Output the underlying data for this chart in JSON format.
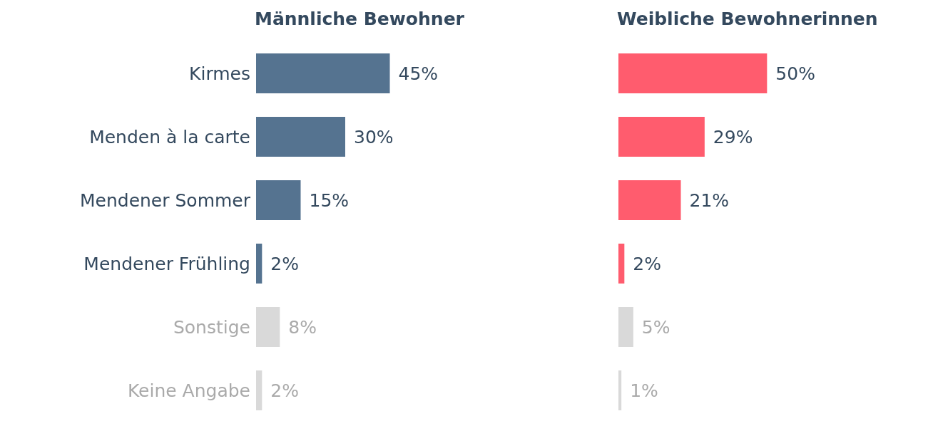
{
  "chart_data": [
    {
      "type": "bar",
      "orientation": "horizontal",
      "title": "Männliche Bewohner",
      "categories": [
        "Kirmes",
        "Menden à la carte",
        "Mendener Sommer",
        "Mendener Frühling",
        "Sonstige",
        "Keine Angabe"
      ],
      "values": [
        45,
        30,
        15,
        2,
        8,
        2
      ],
      "colors": [
        "#557390",
        "#557390",
        "#557390",
        "#557390",
        "#d9d9d9",
        "#d9d9d9"
      ],
      "value_labels": [
        "45%",
        "30%",
        "15%",
        "2%",
        "8%",
        "2%"
      ],
      "tick_labels": "y",
      "grid": false,
      "legend": false
    },
    {
      "type": "bar",
      "orientation": "horizontal",
      "title": "Weibliche Bewohnerinnen",
      "categories": [
        null,
        null,
        null,
        null,
        null,
        null
      ],
      "values": [
        50,
        29,
        21,
        2,
        5,
        1
      ],
      "colors": [
        "#ff5c6e",
        "#ff5c6e",
        "#ff5c6e",
        "#ff5c6e",
        "#d9d9d9",
        "#d9d9d9"
      ],
      "value_labels": [
        "50%",
        "29%",
        "21%",
        "2%",
        "5%",
        "1%"
      ],
      "grid": false,
      "legend": false
    }
  ]
}
